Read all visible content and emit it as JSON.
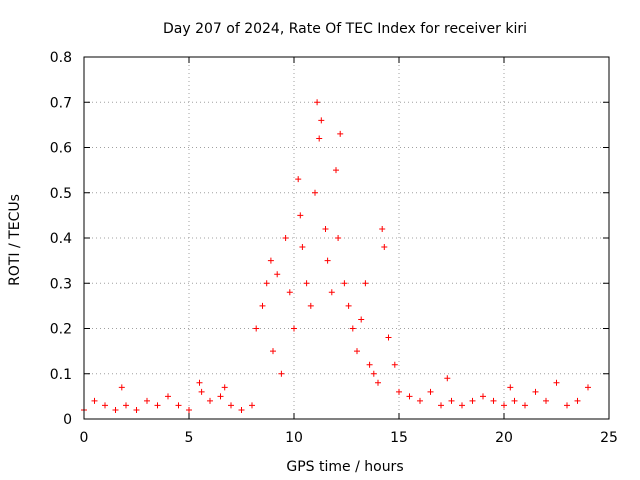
{
  "chart_data": {
    "type": "scatter",
    "title": "Day 207 of 2024, Rate Of TEC Index for receiver kiri",
    "xlabel": "GPS time / hours",
    "ylabel": "ROTI / TECUs",
    "xlim": [
      0,
      25
    ],
    "ylim": [
      0,
      0.8
    ],
    "x_ticks": [
      0,
      5,
      10,
      15,
      20,
      25
    ],
    "x_tick_labels": [
      "0",
      "5",
      "10",
      "15",
      "20",
      "25"
    ],
    "y_ticks": [
      0,
      0.1,
      0.2,
      0.3,
      0.4,
      0.5,
      0.6,
      0.7,
      0.8
    ],
    "y_tick_labels": [
      "0",
      "0.1",
      "0.2",
      "0.3",
      "0.4",
      "0.5",
      "0.6",
      "0.7",
      "0.8"
    ],
    "grid": true,
    "marker": "+",
    "color": "#ff0000",
    "series": [
      {
        "x": [
          0.0,
          0.5,
          1.0,
          1.5,
          1.8,
          2.0,
          2.5,
          3.0,
          3.5,
          4.0,
          4.5,
          5.0,
          5.5,
          5.6,
          6.0,
          6.5,
          6.7,
          7.0,
          7.5,
          8.0,
          8.2,
          8.5,
          8.7,
          8.9,
          9.0,
          9.2,
          9.4,
          9.6,
          9.8,
          10.0,
          10.2,
          10.3,
          10.4,
          10.6,
          10.8,
          11.0,
          11.1,
          11.2,
          11.3,
          11.5,
          11.6,
          11.8,
          12.0,
          12.1,
          12.2,
          12.4,
          12.6,
          12.8,
          13.0,
          13.2,
          13.4,
          13.6,
          13.8,
          14.0,
          14.2,
          14.3,
          14.5,
          14.8,
          15.0,
          15.5,
          16.0,
          16.5,
          17.0,
          17.3,
          17.5,
          18.0,
          18.5,
          19.0,
          19.5,
          20.0,
          20.3,
          20.5,
          21.0,
          21.5,
          22.0,
          22.5,
          23.0,
          23.5,
          24.0
        ],
        "y": [
          0.02,
          0.04,
          0.03,
          0.02,
          0.07,
          0.03,
          0.02,
          0.04,
          0.03,
          0.05,
          0.03,
          0.02,
          0.08,
          0.06,
          0.04,
          0.05,
          0.07,
          0.03,
          0.02,
          0.03,
          0.2,
          0.25,
          0.3,
          0.35,
          0.15,
          0.32,
          0.1,
          0.4,
          0.28,
          0.2,
          0.53,
          0.45,
          0.38,
          0.3,
          0.25,
          0.5,
          0.7,
          0.62,
          0.66,
          0.42,
          0.35,
          0.28,
          0.55,
          0.4,
          0.63,
          0.3,
          0.25,
          0.2,
          0.15,
          0.22,
          0.3,
          0.12,
          0.1,
          0.08,
          0.42,
          0.38,
          0.18,
          0.12,
          0.06,
          0.05,
          0.04,
          0.06,
          0.03,
          0.09,
          0.04,
          0.03,
          0.04,
          0.05,
          0.04,
          0.03,
          0.07,
          0.04,
          0.03,
          0.06,
          0.04,
          0.08,
          0.03,
          0.04,
          0.07
        ]
      }
    ]
  }
}
